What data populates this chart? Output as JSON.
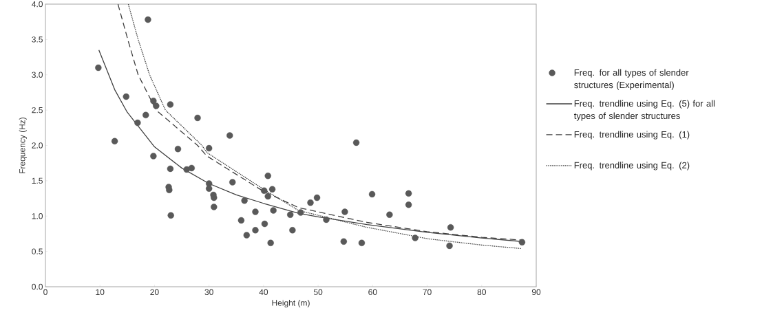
{
  "chart_data": {
    "type": "scatter",
    "xlabel": "Height (m)",
    "ylabel": "Frequency (Hz)",
    "xlim": [
      0,
      90
    ],
    "xticks": [
      0,
      10,
      20,
      30,
      40,
      50,
      60,
      70,
      80,
      90
    ],
    "ylim": [
      0,
      4
    ],
    "yticks": [
      {
        "value": 0,
        "label": "0.0"
      },
      {
        "value": 0.5,
        "label": "0.5"
      },
      {
        "value": 1,
        "label": "1.0"
      },
      {
        "value": 1.5,
        "label": "1.5"
      },
      {
        "value": 2,
        "label": "2.0"
      },
      {
        "value": 2.5,
        "label": "2.5"
      },
      {
        "value": 3,
        "label": "3.0"
      },
      {
        "value": 3.5,
        "label": "3.5"
      },
      {
        "value": 4,
        "label": "4.0"
      }
    ],
    "grid": false,
    "legend": "right",
    "series": [
      {
        "name": "Freq. for all types of slender structures (Experimental)",
        "marker": "circle",
        "color": "#595959",
        "x": [
          9.7,
          12.7,
          14.8,
          16.9,
          18.4,
          18.8,
          19.8,
          20.3,
          19.8,
          22.9,
          27.9,
          24.3,
          22.9,
          22.6,
          22.7,
          23.0,
          25.9,
          26.8,
          33.8,
          30.0,
          34.3,
          30.0,
          30.0,
          30.8,
          30.9,
          30.9,
          36.5,
          35.9,
          36.9,
          40.8,
          40.1,
          41.6,
          40.8,
          38.5,
          41.8,
          40.2,
          38.5,
          41.3,
          45.3,
          44.9,
          46.8,
          48.6,
          49.8,
          51.5,
          54.9,
          54.7,
          57.0,
          58.0,
          59.9,
          63.1,
          66.6,
          66.6,
          67.8,
          74.3,
          74.1,
          87.4
        ],
        "values": [
          3.1,
          2.06,
          2.69,
          2.32,
          2.43,
          3.78,
          2.63,
          2.56,
          1.85,
          2.58,
          2.39,
          1.95,
          1.67,
          1.41,
          1.37,
          1.01,
          1.66,
          1.68,
          2.14,
          1.96,
          1.48,
          1.46,
          1.39,
          1.3,
          1.26,
          1.13,
          1.22,
          0.94,
          0.73,
          1.57,
          1.36,
          1.38,
          1.28,
          1.06,
          1.08,
          0.89,
          0.8,
          0.62,
          0.8,
          1.02,
          1.05,
          1.19,
          1.26,
          0.95,
          1.06,
          0.64,
          2.04,
          0.62,
          1.31,
          1.02,
          1.32,
          1.16,
          0.69,
          0.84,
          0.58,
          0.63
        ]
      },
      {
        "name": "Freq. trendline using Eq. (5) for all types of slender structures",
        "type": "line",
        "marker": "none",
        "line_style": "solid",
        "color": "#404040",
        "x": [
          9.8,
          12.7,
          15,
          20,
          25,
          30,
          35,
          40,
          46.4,
          50,
          59,
          70,
          80,
          87.4
        ],
        "values": [
          3.35,
          2.79,
          2.47,
          1.98,
          1.68,
          1.46,
          1.3,
          1.18,
          1.04,
          0.99,
          0.88,
          0.77,
          0.69,
          0.64
        ]
      },
      {
        "name": "Freq. trendline using Eq. (1)",
        "type": "line",
        "marker": "none",
        "line_style": "dashed",
        "color": "#404040",
        "x": [
          13.3,
          15.1,
          17,
          20.3,
          27.9,
          29.6,
          40,
          46.4,
          59,
          70,
          80,
          87.4
        ],
        "values": [
          4.0,
          3.5,
          3.0,
          2.5,
          2.0,
          1.85,
          1.35,
          1.12,
          0.91,
          0.78,
          0.7,
          0.66
        ]
      },
      {
        "name": "Freq. trendline using Eq. (2)",
        "type": "line",
        "marker": "none",
        "line_style": "dotted",
        "color": "#404040",
        "x": [
          15.2,
          17,
          19.1,
          22,
          28.7,
          29.6,
          40,
          46.4,
          59,
          70,
          80,
          87.3
        ],
        "values": [
          4.0,
          3.5,
          3.0,
          2.5,
          2.0,
          1.9,
          1.38,
          1.08,
          0.84,
          0.68,
          0.59,
          0.54
        ]
      }
    ]
  }
}
